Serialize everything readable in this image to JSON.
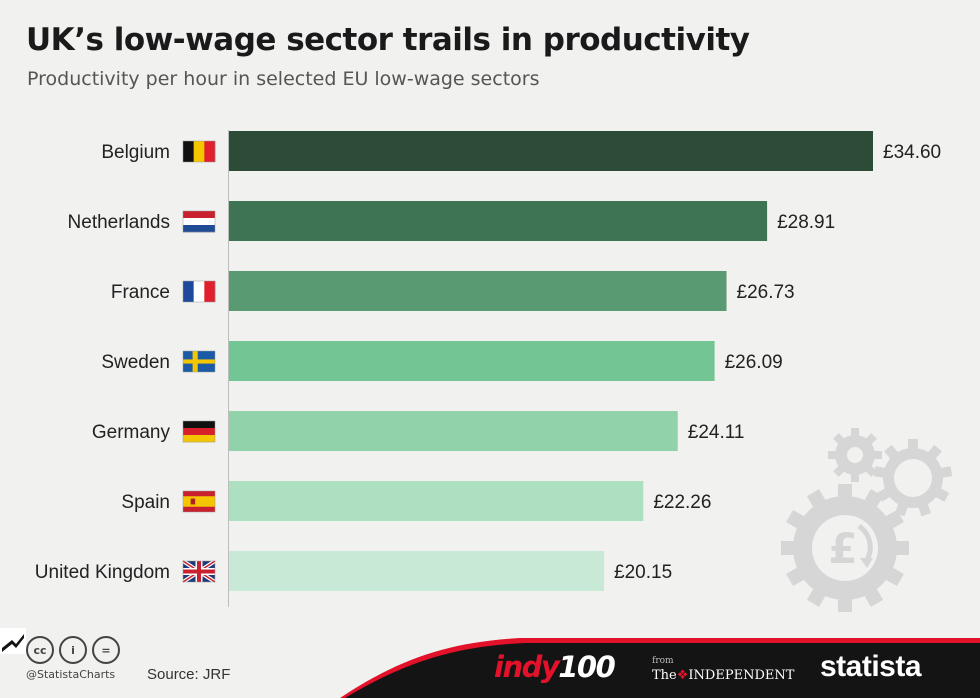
{
  "chart_data": {
    "type": "bar",
    "orientation": "horizontal",
    "title": "UK’s low-wage sector trails in productivity",
    "subtitle": "Productivity per hour in selected EU low-wage sectors",
    "categories": [
      "Belgium",
      "Netherlands",
      "France",
      "Sweden",
      "Germany",
      "Spain",
      "United Kingdom"
    ],
    "values": [
      34.6,
      28.91,
      26.73,
      26.09,
      24.11,
      22.26,
      20.15
    ],
    "value_labels": [
      "£34.60",
      "£28.91",
      "£26.73",
      "£26.09",
      "£24.11",
      "£22.26",
      "£20.15"
    ],
    "flags": [
      "belgium-flag",
      "netherlands-flag",
      "france-flag",
      "sweden-flag",
      "germany-flag",
      "spain-flag",
      "uk-flag"
    ],
    "colors": [
      "#2c4c38",
      "#3e7453",
      "#5a9a72",
      "#74c594",
      "#91d2aa",
      "#ace0c0",
      "#c8e9d5"
    ],
    "xlim": [
      0,
      34.6
    ],
    "grid": false,
    "legend": "none"
  },
  "footer": {
    "handle": "@StatistaCharts",
    "source": "Source: JRF",
    "cc_icons": [
      "cc",
      "by",
      "nd"
    ],
    "cc_labels": [
      "cc",
      "i",
      "="
    ],
    "indy_text": "indy",
    "indy_num": "100",
    "from_text": "from",
    "independent_the": "The",
    "independent_name": "INDEPENDENT",
    "statista": "statista",
    "bg_color": "#141414",
    "accent_color": "#e3122a"
  }
}
